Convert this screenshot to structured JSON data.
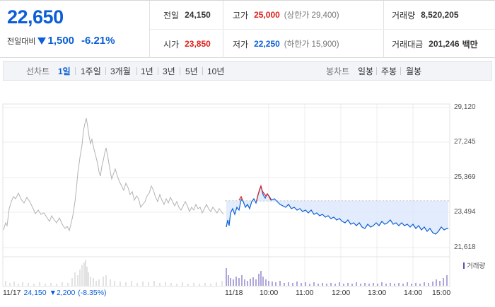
{
  "stock": {
    "price": "22,650",
    "change_label": "전일대비",
    "change_value": "1,500",
    "change_pct": "-6.21%"
  },
  "info": {
    "prev_close_label": "전일",
    "prev_close": "24,150",
    "open_label": "시가",
    "open": "23,850",
    "high_label": "고가",
    "high": "25,000",
    "upper_limit": "(상한가 29,400)",
    "low_label": "저가",
    "low": "22,250",
    "lower_limit": "(하한가 15,900)",
    "volume_label": "거래량",
    "volume": "8,520,205",
    "amount_label": "거래대금",
    "amount": "201,246",
    "amount_unit": "백만"
  },
  "tabs": {
    "line_title": "선차트",
    "line": [
      "1일",
      "1주일",
      "3개월",
      "1년",
      "3년",
      "5년",
      "10년"
    ],
    "line_active": "1일",
    "candle_title": "봉차트",
    "candle": [
      "일봉",
      "주봉",
      "월봉"
    ]
  },
  "chart_labels": {
    "y_ticks": [
      "29,120",
      "27,245",
      "25,369",
      "23,494",
      "21,618"
    ],
    "x_ticks": [
      "11/18",
      "10:00",
      "11:00",
      "12:00",
      "13:00",
      "14:00",
      "15:00"
    ],
    "prev_date": "11/17",
    "prev_close": "24,150",
    "prev_change": "▼2,200",
    "prev_pct": "(-8.35%)",
    "volume_legend": "거래량"
  },
  "colors": {
    "up": "#e0201b",
    "down": "#0b5ed7",
    "prev_line": "#b3b3b3",
    "fill": "#dde9fb",
    "volume": "#5a4fb6"
  }
}
